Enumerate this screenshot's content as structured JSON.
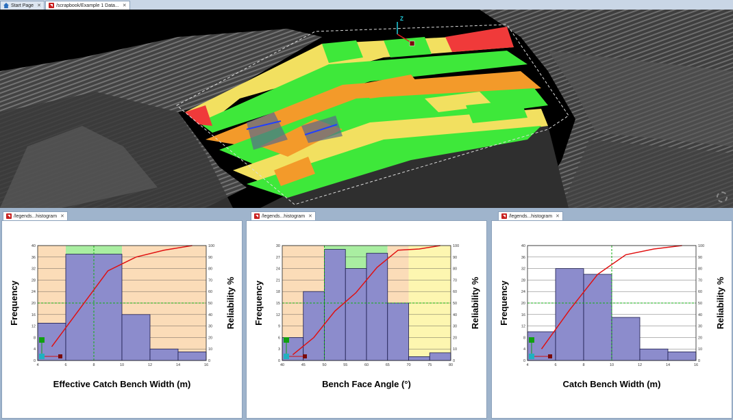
{
  "top_tabs": [
    {
      "label": "Start Page",
      "icon": "home-icon",
      "active": false
    },
    {
      "label": "/scrapbook/Example 1 Data...",
      "icon": "document-icon",
      "active": true
    }
  ],
  "axis_gizmo_label": "Z",
  "panels": [
    {
      "tab_label": "/legends...histogram",
      "xlabel": "Effective Catch Bench Width (m)",
      "ylabel": "Frequency",
      "y2label": "Reliability %",
      "xlim": [
        4,
        16
      ],
      "x_ticks": [
        "4",
        "6",
        "8",
        "10",
        "12",
        "14",
        "16"
      ],
      "ylim": [
        0,
        40
      ],
      "y_ticks": [
        "0",
        "4",
        "8",
        "12",
        "16",
        "20",
        "24",
        "28",
        "32",
        "36",
        "40"
      ],
      "y2_ticks": [
        "0",
        "10",
        "20",
        "30",
        "40",
        "50",
        "60",
        "70",
        "80",
        "90",
        "100"
      ],
      "bins": [
        [
          4,
          6,
          13
        ],
        [
          6,
          10,
          37
        ],
        [
          10,
          12,
          16
        ],
        [
          12,
          14,
          4
        ],
        [
          14,
          16,
          3
        ]
      ],
      "zones": [
        {
          "from": 4,
          "to": 6,
          "color": "#fbdcb8"
        },
        {
          "from": 6,
          "to": 10,
          "color": "#a9eea1"
        },
        {
          "from": 10,
          "to": 16,
          "color": "#fbdcb8"
        }
      ],
      "zone_top": 37,
      "cumulative": [
        [
          5,
          12
        ],
        [
          7,
          45
        ],
        [
          9,
          78
        ],
        [
          11,
          90
        ],
        [
          13,
          96
        ],
        [
          15,
          100
        ]
      ],
      "ref_x": 8,
      "ref_y2": 50,
      "grid": true
    },
    {
      "tab_label": "/legends...histogram",
      "xlabel": "Bench Face Angle (°)",
      "ylabel": "Frequency",
      "y2label": "Reliability %",
      "xlim": [
        40,
        80
      ],
      "x_ticks": [
        "40",
        "45",
        "50",
        "55",
        "60",
        "65",
        "70",
        "75",
        "80"
      ],
      "ylim": [
        0,
        30
      ],
      "y_ticks": [
        "0",
        "3",
        "6",
        "9",
        "12",
        "15",
        "18",
        "21",
        "24",
        "27",
        "30"
      ],
      "y2_ticks": [
        "0",
        "10",
        "20",
        "30",
        "40",
        "50",
        "60",
        "70",
        "80",
        "90",
        "100"
      ],
      "bins": [
        [
          40,
          45,
          6
        ],
        [
          45,
          50,
          18
        ],
        [
          50,
          55,
          29
        ],
        [
          55,
          60,
          24
        ],
        [
          60,
          65,
          28
        ],
        [
          65,
          70,
          15
        ],
        [
          70,
          75,
          1
        ],
        [
          75,
          80,
          2
        ]
      ],
      "zones": [
        {
          "from": 40,
          "to": 50,
          "color": "#fbdcb8"
        },
        {
          "from": 50,
          "to": 65,
          "color": "#a9eea1"
        },
        {
          "from": 65,
          "to": 70,
          "color": "#fbdcb8"
        },
        {
          "from": 70,
          "to": 80,
          "color": "#fdf6b0"
        }
      ],
      "zone_top": 30,
      "cumulative": [
        [
          42.5,
          5
        ],
        [
          47.5,
          20
        ],
        [
          52.5,
          43
        ],
        [
          57.5,
          59
        ],
        [
          62.5,
          81
        ],
        [
          67.5,
          96
        ],
        [
          72.5,
          97
        ],
        [
          77.5,
          100
        ]
      ],
      "ref_x": 50,
      "ref_y2": 50,
      "grid": true
    },
    {
      "tab_label": "/legends...histogram",
      "xlabel": "Catch Bench Width (m)",
      "ylabel": "Frequency",
      "y2label": "Reliability %",
      "xlim": [
        4,
        16
      ],
      "x_ticks": [
        "4",
        "6",
        "8",
        "10",
        "12",
        "14",
        "16"
      ],
      "ylim": [
        0,
        40
      ],
      "y_ticks": [
        "0",
        "4",
        "8",
        "12",
        "16",
        "20",
        "24",
        "28",
        "32",
        "36",
        "40"
      ],
      "y2_ticks": [
        "0",
        "10",
        "20",
        "30",
        "40",
        "50",
        "60",
        "70",
        "80",
        "90",
        "100"
      ],
      "bins": [
        [
          4,
          6,
          10
        ],
        [
          6,
          8,
          32
        ],
        [
          8,
          10,
          30
        ],
        [
          10,
          12,
          15
        ],
        [
          12,
          14,
          4
        ],
        [
          14,
          16,
          3
        ]
      ],
      "zones": [],
      "zone_top": 0,
      "cumulative": [
        [
          5,
          10
        ],
        [
          7,
          44
        ],
        [
          9,
          75
        ],
        [
          11,
          92
        ],
        [
          13,
          97
        ],
        [
          15,
          100
        ]
      ],
      "ref_x": 10,
      "ref_y2": 50,
      "grid": true
    }
  ],
  "chart_data": [
    {
      "type": "bar",
      "xlabel": "Effective Catch Bench Width (m)",
      "ylabel": "Frequency",
      "y2label": "Reliability %",
      "x_bins": [
        [
          4,
          6
        ],
        [
          6,
          10
        ],
        [
          10,
          12
        ],
        [
          12,
          14
        ],
        [
          14,
          16
        ]
      ],
      "values": [
        13,
        37,
        16,
        4,
        3
      ],
      "cumulative_reliability": [
        12,
        45,
        78,
        90,
        96,
        100
      ],
      "xlim": [
        4,
        16
      ],
      "ylim": [
        0,
        40
      ],
      "y2lim": [
        0,
        100
      ]
    },
    {
      "type": "bar",
      "xlabel": "Bench Face Angle (°)",
      "ylabel": "Frequency",
      "y2label": "Reliability %",
      "x_bins": [
        [
          40,
          45
        ],
        [
          45,
          50
        ],
        [
          50,
          55
        ],
        [
          55,
          60
        ],
        [
          60,
          65
        ],
        [
          65,
          70
        ],
        [
          70,
          75
        ],
        [
          75,
          80
        ]
      ],
      "values": [
        6,
        18,
        29,
        24,
        28,
        15,
        1,
        2
      ],
      "cumulative_reliability": [
        5,
        20,
        43,
        59,
        81,
        96,
        97,
        100
      ],
      "xlim": [
        40,
        80
      ],
      "ylim": [
        0,
        30
      ],
      "y2lim": [
        0,
        100
      ]
    },
    {
      "type": "bar",
      "xlabel": "Catch Bench Width (m)",
      "ylabel": "Frequency",
      "y2label": "Reliability %",
      "x_bins": [
        [
          4,
          6
        ],
        [
          6,
          8
        ],
        [
          8,
          10
        ],
        [
          10,
          12
        ],
        [
          12,
          14
        ],
        [
          14,
          16
        ]
      ],
      "values": [
        10,
        32,
        30,
        15,
        4,
        3
      ],
      "cumulative_reliability": [
        10,
        44,
        75,
        92,
        97,
        100
      ],
      "xlim": [
        4,
        16
      ],
      "ylim": [
        0,
        40
      ],
      "y2lim": [
        0,
        100
      ]
    }
  ],
  "colors": {
    "bar_fill": "#8c8ccc",
    "bar_stroke": "#1a1a4a",
    "cumulative_line": "#e01010",
    "reference_line": "#10b010",
    "tab_doc_icon": "#c8201f",
    "tab_home_icon": "#2a6ebd"
  }
}
